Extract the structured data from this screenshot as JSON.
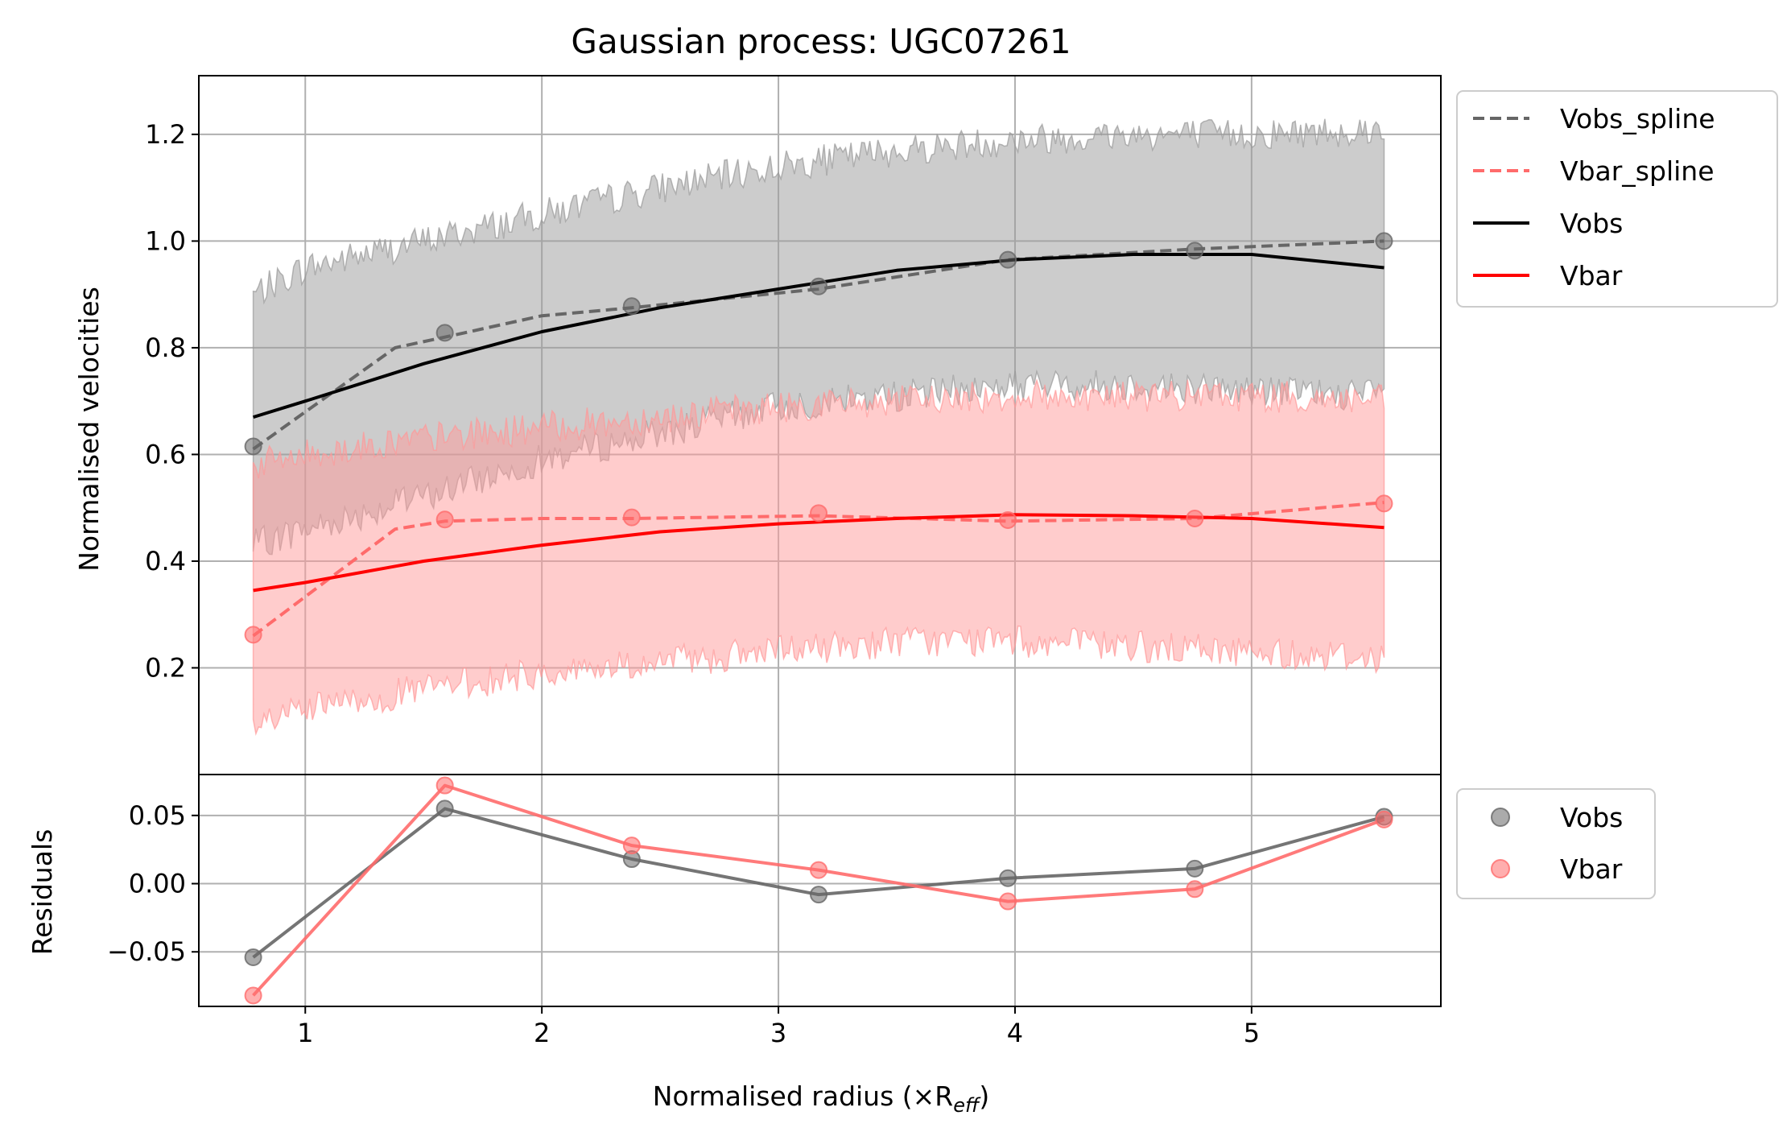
{
  "chart_data": {
    "type": "line",
    "title": "Gaussian process: UGC07261",
    "xlabel": "Normalised radius (×R",
    "xlabel_sub": "eff",
    "xlabel_end": ")",
    "xlim": [
      0.55,
      5.8
    ],
    "x_ticks": [
      1,
      2,
      3,
      4,
      5
    ],
    "x_tick_labels": [
      "1",
      "2",
      "3",
      "4",
      "5"
    ],
    "grid": true,
    "main": {
      "ylabel": "Normalised velocities",
      "ylim": [
        0.0,
        1.31
      ],
      "y_ticks": [
        0.2,
        0.4,
        0.6,
        0.8,
        1.0,
        1.2
      ],
      "y_tick_labels": [
        "0.2",
        "0.4",
        "0.6",
        "0.8",
        "1.0",
        "1.2"
      ],
      "legend_position": "outside upper right",
      "series": [
        {
          "name": "Vobs_spline",
          "style": "dashed",
          "color": "#666666",
          "x": [
            0.78,
            1.38,
            1.59,
            2.0,
            2.38,
            3.17,
            3.97,
            4.76,
            5.56
          ],
          "y": [
            0.61,
            0.8,
            0.82,
            0.86,
            0.875,
            0.91,
            0.965,
            0.985,
            1.0
          ]
        },
        {
          "name": "Vbar_spline",
          "style": "dashed",
          "color": "#ff6b6b",
          "x": [
            0.78,
            1.38,
            1.59,
            2.0,
            2.38,
            3.17,
            3.97,
            4.76,
            5.56
          ],
          "y": [
            0.26,
            0.46,
            0.475,
            0.48,
            0.48,
            0.485,
            0.475,
            0.48,
            0.51
          ]
        },
        {
          "name": "Vobs",
          "style": "solid",
          "color": "#000000",
          "x": [
            0.78,
            1.0,
            1.5,
            2.0,
            2.5,
            3.0,
            3.5,
            4.0,
            4.5,
            5.0,
            5.56
          ],
          "y": [
            0.67,
            0.7,
            0.77,
            0.83,
            0.875,
            0.91,
            0.945,
            0.965,
            0.975,
            0.975,
            0.95
          ]
        },
        {
          "name": "Vbar",
          "style": "solid",
          "color": "#ff0000",
          "x": [
            0.78,
            1.0,
            1.5,
            2.0,
            2.5,
            3.0,
            3.5,
            4.0,
            4.5,
            5.0,
            5.56
          ],
          "y": [
            0.345,
            0.36,
            0.4,
            0.43,
            0.455,
            0.47,
            0.48,
            0.487,
            0.485,
            0.48,
            0.463
          ]
        }
      ],
      "bands": [
        {
          "of": "Vobs",
          "color": "#999999",
          "x": [
            0.78,
            1.0,
            1.5,
            2.0,
            2.5,
            3.0,
            3.5,
            4.0,
            4.5,
            5.0,
            5.56
          ],
          "upper": [
            0.9,
            0.95,
            1.0,
            1.05,
            1.1,
            1.14,
            1.17,
            1.19,
            1.2,
            1.2,
            1.21
          ],
          "lower": [
            0.43,
            0.46,
            0.52,
            0.59,
            0.64,
            0.69,
            0.71,
            0.73,
            0.73,
            0.72,
            0.71
          ]
        },
        {
          "of": "Vbar",
          "color": "#ff9999",
          "x": [
            0.78,
            1.0,
            1.5,
            2.0,
            2.5,
            3.0,
            3.5,
            4.0,
            4.5,
            5.0,
            5.56
          ],
          "upper": [
            0.58,
            0.6,
            0.63,
            0.65,
            0.67,
            0.69,
            0.7,
            0.71,
            0.71,
            0.71,
            0.7
          ],
          "lower": [
            0.09,
            0.12,
            0.16,
            0.19,
            0.21,
            0.23,
            0.25,
            0.25,
            0.24,
            0.23,
            0.22
          ]
        }
      ],
      "points": [
        {
          "of": "Vobs",
          "color": "#666666",
          "x": [
            0.78,
            1.59,
            2.38,
            3.17,
            3.97,
            4.76,
            5.56
          ],
          "y": [
            0.615,
            0.828,
            0.878,
            0.915,
            0.965,
            0.982,
            1.0
          ]
        },
        {
          "of": "Vbar",
          "color": "#ff6b6b",
          "x": [
            0.78,
            1.59,
            2.38,
            3.17,
            3.97,
            4.76,
            5.56
          ],
          "y": [
            0.262,
            0.478,
            0.482,
            0.49,
            0.477,
            0.48,
            0.508
          ]
        }
      ]
    },
    "residuals": {
      "ylabel": "Residuals",
      "ylim": [
        -0.09,
        0.08
      ],
      "y_ticks": [
        -0.05,
        0.0,
        0.05
      ],
      "y_tick_labels": [
        "−0.05",
        "0.00",
        "0.05"
      ],
      "legend_position": "outside upper right",
      "series": [
        {
          "name": "Vobs",
          "color": "#666666",
          "x": [
            0.78,
            1.59,
            2.38,
            3.17,
            3.97,
            4.76,
            5.56
          ],
          "y": [
            -0.054,
            0.055,
            0.018,
            -0.008,
            0.004,
            0.011,
            0.049
          ]
        },
        {
          "name": "Vbar",
          "color": "#ff6b6b",
          "x": [
            0.78,
            1.59,
            2.38,
            3.17,
            3.97,
            4.76,
            5.56
          ],
          "y": [
            -0.082,
            0.072,
            0.028,
            0.01,
            -0.013,
            -0.004,
            0.047
          ]
        }
      ]
    }
  }
}
